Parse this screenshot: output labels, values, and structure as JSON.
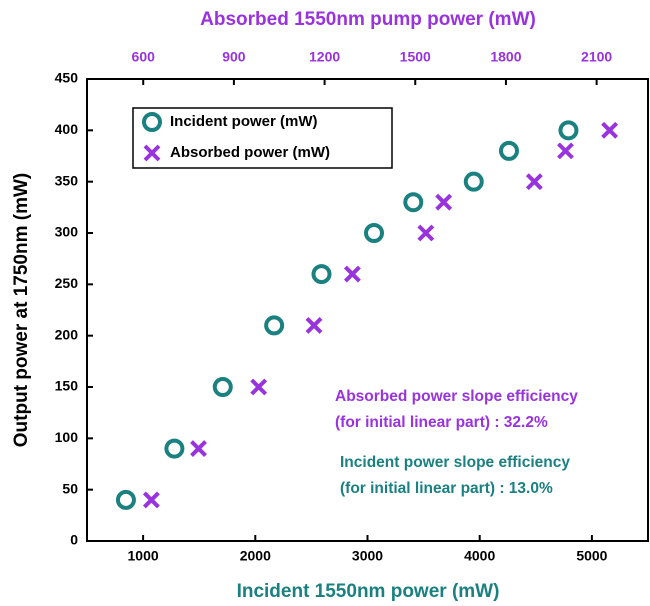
{
  "chart_data": {
    "type": "scatter",
    "title": "Absorbed 1550nm pump power (mW)",
    "x_label": "Incident 1550nm power (mW)",
    "y_label": "Output power at 1750nm (mW)",
    "xlim": [
      500,
      5500
    ],
    "xticks": [
      1000,
      2000,
      3000,
      4000,
      5000
    ],
    "x2lim": [
      414,
      2270
    ],
    "x2ticks": [
      600,
      900,
      1200,
      1500,
      1800,
      2100
    ],
    "ylim": [
      0,
      450
    ],
    "yticks": [
      0,
      50,
      100,
      150,
      200,
      250,
      300,
      350,
      400,
      450
    ],
    "legend": "upper left",
    "series": [
      {
        "name": "Incident power (mW)",
        "color": "#1a8080",
        "marker": "circle",
        "axis": "x",
        "x": [
          847,
          1279,
          1710,
          2168,
          2590,
          3058,
          3408,
          3947,
          4261,
          4791
        ],
        "values": [
          40,
          90,
          150,
          210,
          260,
          300,
          330,
          350,
          380,
          400
        ]
      },
      {
        "name": "Absorbed power (mW)",
        "color": "#9933dd",
        "marker": "cross",
        "axis": "x2",
        "x": [
          627,
          783,
          982,
          1165,
          1292,
          1535,
          1594,
          1894,
          1997,
          2143
        ],
        "values": [
          40,
          90,
          150,
          210,
          260,
          300,
          330,
          350,
          380,
          400
        ]
      }
    ],
    "annotations": [
      {
        "text": "Absorbed power slope efficiency",
        "color": "#9933dd"
      },
      {
        "text": "(for initial linear part) : 32.2%",
        "color": "#9933dd"
      },
      {
        "text": "Incident power slope efficiency",
        "color": "#1a8080"
      },
      {
        "text": "(for initial linear part) : 13.0%",
        "color": "#1a8080"
      }
    ]
  }
}
